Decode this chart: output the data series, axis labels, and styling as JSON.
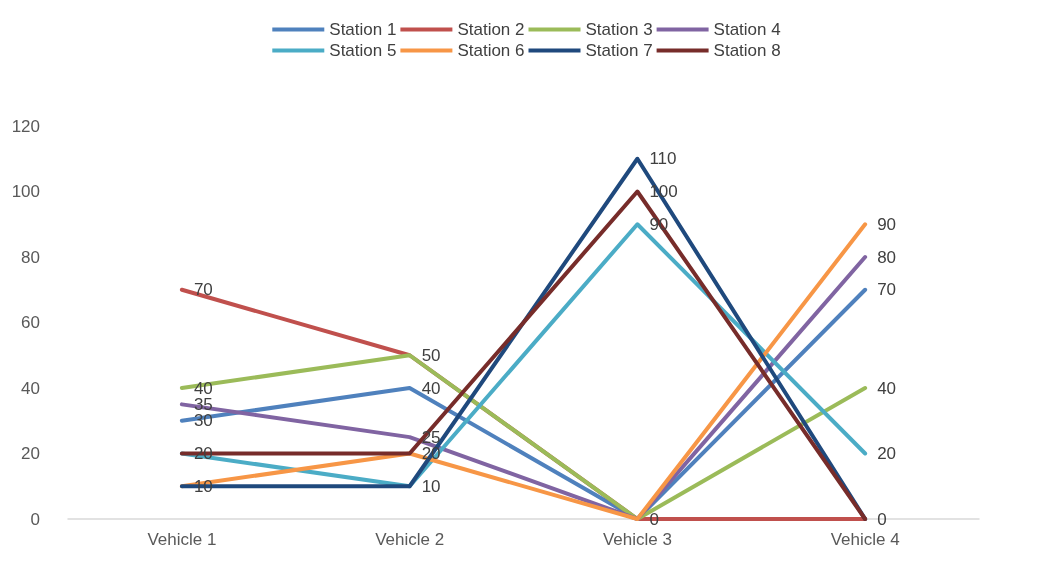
{
  "chart_data": {
    "type": "line",
    "categories": [
      "Vehicle 1",
      "Vehicle 2",
      "Vehicle 3",
      "Vehicle 4"
    ],
    "series": [
      {
        "name": "Station 1",
        "color": "#4f81bd",
        "values": [
          30,
          40,
          0,
          70
        ],
        "value_labels": [
          "30",
          "40",
          "0",
          "70"
        ]
      },
      {
        "name": "Station 2",
        "color": "#c0504d",
        "values": [
          70,
          50,
          0,
          0
        ],
        "value_labels": [
          "70",
          "50",
          null,
          "0"
        ]
      },
      {
        "name": "Station 3",
        "color": "#9bbb59",
        "values": [
          40,
          50,
          0,
          40
        ],
        "value_labels": [
          "40",
          null,
          null,
          "40"
        ]
      },
      {
        "name": "Station 4",
        "color": "#8064a2",
        "values": [
          35,
          25,
          0,
          80
        ],
        "value_labels": [
          "35",
          "25",
          null,
          "80"
        ]
      },
      {
        "name": "Station 5",
        "color": "#4bacc6",
        "values": [
          20,
          10,
          90,
          20
        ],
        "value_labels": [
          "20",
          "10",
          "90",
          "20"
        ]
      },
      {
        "name": "Station 6",
        "color": "#f79646",
        "values": [
          10,
          20,
          0,
          90
        ],
        "value_labels": [
          "10",
          "20",
          null,
          "90"
        ]
      },
      {
        "name": "Station 7",
        "color": "#1f497d",
        "values": [
          10,
          10,
          110,
          0
        ],
        "value_labels": [
          null,
          null,
          "110",
          null
        ]
      },
      {
        "name": "Station 8",
        "color": "#772c2a",
        "values": [
          20,
          20,
          100,
          0
        ],
        "value_labels": [
          null,
          null,
          "100",
          null
        ]
      }
    ],
    "ylim": [
      0,
      120
    ],
    "yticks": [
      0,
      20,
      40,
      60,
      80,
      100,
      120
    ],
    "grid": false,
    "legend": "top",
    "marker": "none",
    "line_style": "solid"
  }
}
